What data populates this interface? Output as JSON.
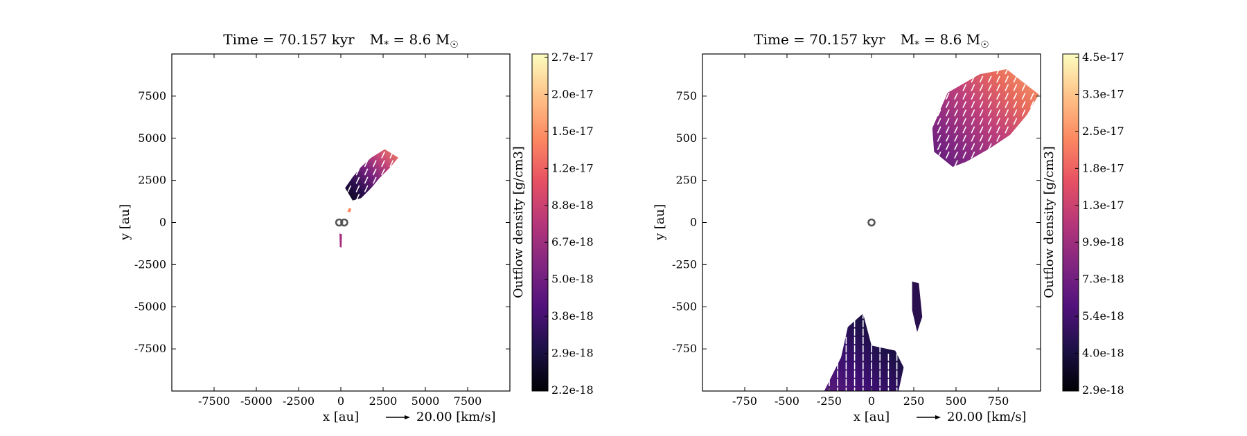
{
  "chart_data": [
    {
      "type": "heatmap",
      "title": "Time = 70.157 kyr    M$_*$ = 8.6 M$_\\odot$",
      "title_parts": {
        "time": "Time = 70.157 kyr",
        "mass_prefix": "M",
        "mass_sub": "*",
        "mass_eq": " = 8.6 M",
        "mass_unit_sub": "☉"
      },
      "xlabel": "x [au]",
      "ylabel": "y [au]",
      "xlim": [
        -10000,
        10000
      ],
      "ylim": [
        -10000,
        10000
      ],
      "xticks": [
        -7500,
        -5000,
        -2500,
        0,
        2500,
        5000,
        7500
      ],
      "yticks": [
        -7500,
        -5000,
        -2500,
        0,
        2500,
        5000,
        7500
      ],
      "vector_key": "20.00 [km/s]",
      "colorbar": {
        "label": "Outflow density [g/cm3]",
        "ticks": [
          "2.2e-18",
          "2.9e-18",
          "3.8e-18",
          "5.0e-18",
          "6.7e-18",
          "8.8e-18",
          "1.2e-17",
          "1.5e-17",
          "2.0e-17",
          "2.7e-17"
        ],
        "colormap": [
          "#000004",
          "#1d1147",
          "#51127c",
          "#822681",
          "#b73779",
          "#e75263",
          "#fc8961",
          "#fec287",
          "#fcfdbf"
        ]
      },
      "regions": [
        {
          "name": "main-outflow-lobe",
          "polygon": [
            [
              250,
              2050
            ],
            [
              700,
              2700
            ],
            [
              1200,
              3300
            ],
            [
              1800,
              3850
            ],
            [
              2600,
              4350
            ],
            [
              3400,
              3850
            ],
            [
              2900,
              3250
            ],
            [
              2300,
              2650
            ],
            [
              1800,
              2050
            ],
            [
              1200,
              1450
            ],
            [
              700,
              1300
            ]
          ],
          "density_gradient": [
            "#f08060",
            "#c84878",
            "#7a2280",
            "#2a0f4e",
            "#0a0518"
          ]
        },
        {
          "name": "small-knot",
          "polygon": [
            [
              380,
              650
            ],
            [
              480,
              850
            ],
            [
              620,
              820
            ],
            [
              560,
              600
            ]
          ],
          "density": "#fc8961"
        },
        {
          "name": "southern-spur",
          "polygon": [
            [
              -80,
              -650
            ],
            [
              60,
              -700
            ],
            [
              40,
              -1500
            ],
            [
              -60,
              -1450
            ]
          ],
          "density": "#a52c7e"
        }
      ],
      "sinks": [
        [
          -100,
          0
        ],
        [
          200,
          0
        ]
      ]
    },
    {
      "type": "heatmap",
      "title": "Time = 70.157 kyr    M$_*$ = 8.6 M$_\\odot$",
      "title_parts": {
        "time": "Time = 70.157 kyr",
        "mass_prefix": "M",
        "mass_sub": "*",
        "mass_eq": " = 8.6 M",
        "mass_unit_sub": "☉"
      },
      "xlabel": "x [au]",
      "ylabel": "y [au]",
      "xlim": [
        -1000,
        1000
      ],
      "ylim": [
        -1000,
        1000
      ],
      "xticks": [
        -750,
        -500,
        -250,
        0,
        250,
        500,
        750
      ],
      "yticks": [
        -750,
        -500,
        -250,
        0,
        250,
        500,
        750
      ],
      "vector_key": "20.00 [km/s]",
      "colorbar": {
        "label": "Outflow density [g/cm3]",
        "ticks": [
          "2.9e-18",
          "4.0e-18",
          "5.4e-18",
          "7.3e-18",
          "9.9e-18",
          "1.3e-17",
          "1.8e-17",
          "2.5e-17",
          "3.3e-17",
          "4.5e-17"
        ],
        "colormap": [
          "#000004",
          "#1d1147",
          "#51127c",
          "#822681",
          "#b73779",
          "#e75263",
          "#fc8961",
          "#fec287",
          "#fcfdbf"
        ]
      },
      "regions": [
        {
          "name": "northeast-lobe",
          "polygon": [
            [
              480,
              330
            ],
            [
              370,
              420
            ],
            [
              360,
              560
            ],
            [
              450,
              770
            ],
            [
              640,
              880
            ],
            [
              800,
              910
            ],
            [
              900,
              830
            ],
            [
              990,
              760
            ],
            [
              920,
              640
            ],
            [
              820,
              520
            ],
            [
              700,
              440
            ],
            [
              560,
              360
            ]
          ],
          "density_gradient": [
            "#f5a06a",
            "#e86a5c",
            "#c0407a",
            "#8a2a82",
            "#5a1a7c"
          ]
        },
        {
          "name": "south-lobe",
          "polygon": [
            [
              -280,
              -1000
            ],
            [
              160,
              -1000
            ],
            [
              190,
              -860
            ],
            [
              140,
              -760
            ],
            [
              0,
              -730
            ],
            [
              -50,
              -540
            ],
            [
              -140,
              -620
            ],
            [
              -180,
              -800
            ]
          ],
          "density_gradient": [
            "#0a0518",
            "#1d1147",
            "#3b0f70",
            "#5a1a7c"
          ]
        },
        {
          "name": "small-filament",
          "polygon": [
            [
              240,
              -350
            ],
            [
              280,
              -360
            ],
            [
              300,
              -560
            ],
            [
              270,
              -650
            ],
            [
              240,
              -520
            ]
          ],
          "density": "#2a0f4e"
        }
      ],
      "sinks": [
        [
          0,
          0
        ]
      ]
    }
  ]
}
